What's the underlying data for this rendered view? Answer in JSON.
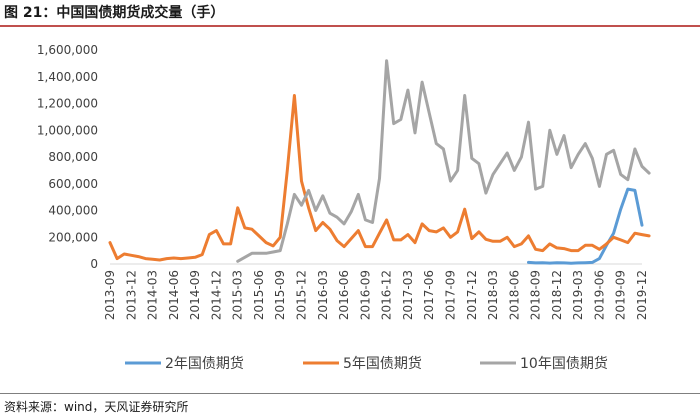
{
  "title": "图 21：中国国债期货成交量（手）",
  "source": "资料来源：wind，天风证券研究所",
  "chart_data": {
    "type": "line",
    "title": "图 21：中国国债期货成交量（手）",
    "xlabel": "",
    "ylabel": "",
    "ylim": [
      0,
      1600000
    ],
    "yticks": [
      "0",
      "200,000",
      "400,000",
      "600,000",
      "800,000",
      "1,000,000",
      "1,200,000",
      "1,400,000",
      "1,600,000"
    ],
    "grid": false,
    "legend": "bottom",
    "x_labels": [
      "2013-09",
      "2013-12",
      "2014-03",
      "2014-06",
      "2014-09",
      "2014-12",
      "2015-03",
      "2015-06",
      "2015-09",
      "2015-12",
      "2016-03",
      "2016-06",
      "2016-09",
      "2016-12",
      "2017-03",
      "2017-06",
      "2017-09",
      "2017-12",
      "2018-03",
      "2018-06",
      "2018-09",
      "2018-12",
      "2019-03",
      "2019-06",
      "2019-09",
      "2019-12"
    ],
    "x_start": "2013-09",
    "series": [
      {
        "name": "2年国债期货",
        "color": "#5b9bd5",
        "start": "2018-08",
        "values": [
          12000,
          8000,
          10000,
          7000,
          9000,
          8000,
          6000,
          8000,
          10000,
          12000,
          40000,
          140000,
          230000,
          410000,
          560000,
          550000,
          290000
        ]
      },
      {
        "name": "5年国债期货",
        "color": "#ed7d31",
        "start": "2013-09",
        "values": [
          160000,
          40000,
          75000,
          65000,
          55000,
          40000,
          35000,
          30000,
          40000,
          45000,
          40000,
          45000,
          50000,
          70000,
          220000,
          250000,
          150000,
          150000,
          420000,
          270000,
          260000,
          210000,
          160000,
          135000,
          200000,
          700000,
          1260000,
          620000,
          420000,
          250000,
          310000,
          260000,
          175000,
          130000,
          190000,
          250000,
          130000,
          130000,
          230000,
          330000,
          180000,
          180000,
          220000,
          160000,
          300000,
          250000,
          240000,
          270000,
          200000,
          240000,
          410000,
          190000,
          240000,
          185000,
          170000,
          170000,
          200000,
          130000,
          150000,
          210000,
          110000,
          100000,
          150000,
          120000,
          115000,
          100000,
          100000,
          140000,
          140000,
          110000,
          150000,
          200000,
          180000,
          160000,
          230000,
          220000,
          210000
        ]
      },
      {
        "name": "10年国债期货",
        "color": "#a5a5a5",
        "start": "2015-03",
        "values": [
          20000,
          50000,
          80000,
          80000,
          80000,
          90000,
          100000,
          300000,
          520000,
          440000,
          550000,
          400000,
          510000,
          380000,
          350000,
          300000,
          390000,
          520000,
          330000,
          310000,
          640000,
          1520000,
          1050000,
          1080000,
          1300000,
          980000,
          1360000,
          1130000,
          900000,
          860000,
          620000,
          700000,
          1260000,
          790000,
          750000,
          530000,
          670000,
          750000,
          830000,
          700000,
          800000,
          1060000,
          560000,
          580000,
          1000000,
          820000,
          960000,
          720000,
          820000,
          900000,
          790000,
          580000,
          820000,
          850000,
          670000,
          630000,
          860000,
          730000,
          680000
        ]
      }
    ]
  }
}
